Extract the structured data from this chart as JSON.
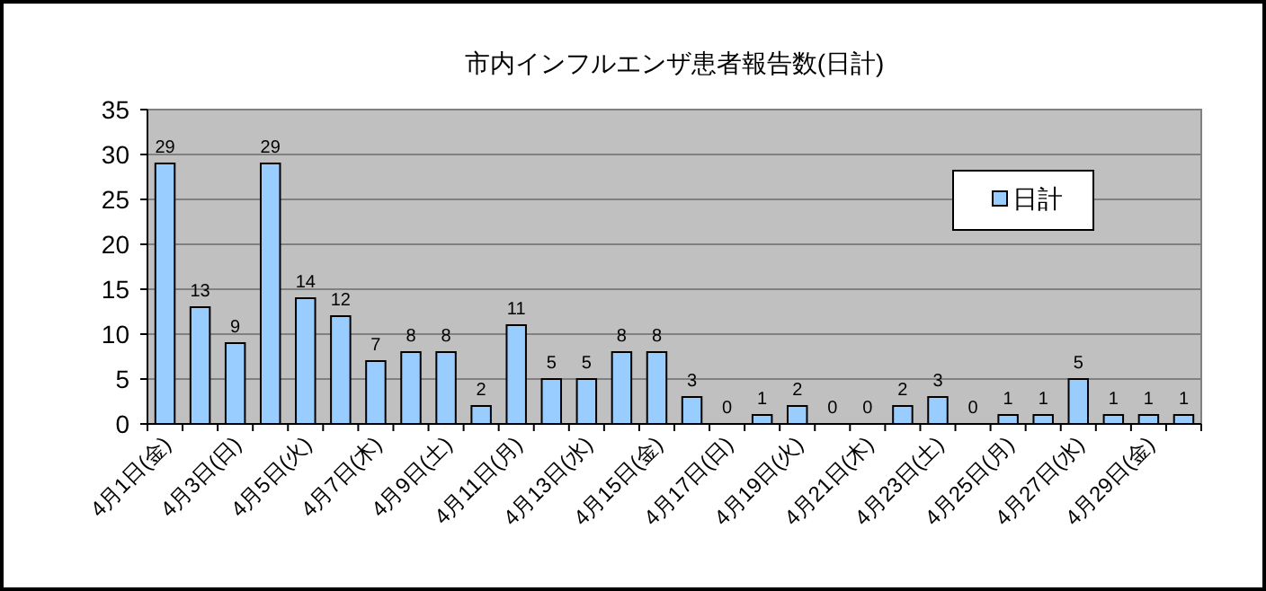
{
  "chart_data": {
    "type": "bar",
    "title": "市内インフルエンザ患者報告数(日計)",
    "categories": [
      "4月1日(金)",
      null,
      "4月3日(日)",
      null,
      "4月5日(火)",
      null,
      "4月7日(木)",
      null,
      "4月9日(土)",
      null,
      "4月11日(月)",
      null,
      "4月13日(水)",
      null,
      "4月15日(金)",
      null,
      "4月17日(日)",
      null,
      "4月19日(火)",
      null,
      "4月21日(木)",
      null,
      "4月23日(土)",
      null,
      "4月25日(月)",
      null,
      "4月27日(水)",
      null,
      "4月29日(金)",
      null
    ],
    "series": [
      {
        "name": "日計",
        "color": "#99ccff",
        "values": [
          29,
          13,
          9,
          29,
          14,
          12,
          7,
          8,
          8,
          2,
          11,
          5,
          5,
          8,
          8,
          3,
          0,
          1,
          2,
          0,
          0,
          2,
          3,
          0,
          1,
          1,
          5,
          1,
          1,
          1
        ]
      }
    ],
    "ylim": [
      0,
      35
    ],
    "yticks": [
      0,
      5,
      10,
      15,
      20,
      25,
      30,
      35
    ],
    "grid": "y",
    "legend": "top right",
    "data_labels": true
  }
}
